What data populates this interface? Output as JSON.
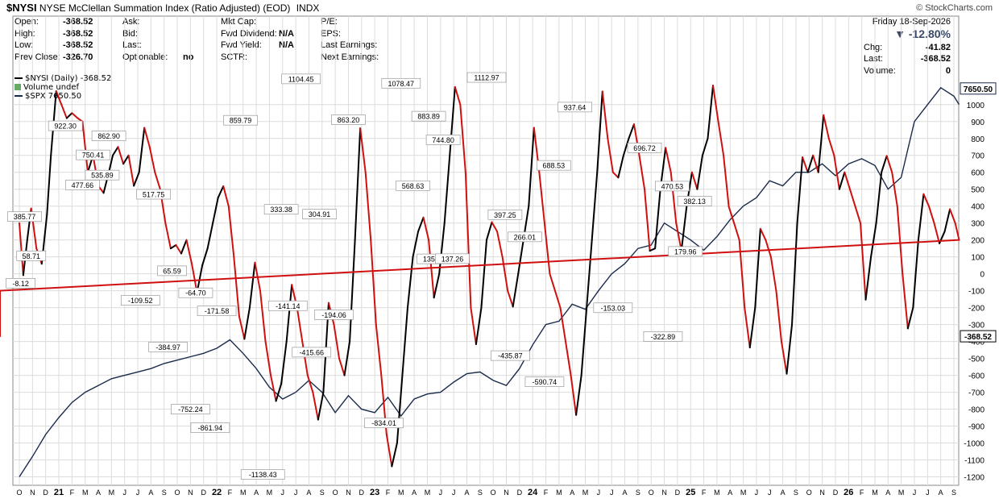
{
  "header": {
    "symbol": "$NYSI",
    "name": "NYSE McClellan Summation Index (Ratio Adjusted) (EOD)",
    "exchange": "INDX",
    "credit": "© StockCharts.com"
  },
  "quote_left": [
    {
      "label": "Open:",
      "value": "-368.52"
    },
    {
      "label": "High:",
      "value": "-368.52"
    },
    {
      "label": "Low:",
      "value": "-368.52"
    },
    {
      "label": "Prev Close:",
      "value": "-326.70"
    }
  ],
  "quote_mid": [
    {
      "label": "Ask:",
      "value": ""
    },
    {
      "label": "Bid:",
      "value": ""
    },
    {
      "label": "Last:",
      "value": ""
    },
    {
      "label": "Optionable:",
      "value": "no"
    }
  ],
  "quote_mid2": [
    {
      "label": "Mkt Cap:",
      "value": ""
    },
    {
      "label": "Fwd Dividend:",
      "value": "N/A"
    },
    {
      "label": "Fwd Yield:",
      "value": "N/A"
    },
    {
      "label": "SCTR:",
      "value": ""
    }
  ],
  "quote_mid3": [
    {
      "label": "P/E:",
      "value": ""
    },
    {
      "label": "EPS:",
      "value": ""
    },
    {
      "label": "Last Earnings:",
      "value": ""
    },
    {
      "label": "Next Earnings:",
      "value": ""
    }
  ],
  "quote_right": {
    "date": "Friday  18-Sep-2026",
    "change_pct": "▼ -12.80%",
    "rows": [
      {
        "label": "Chg:",
        "value": "-41.82"
      },
      {
        "label": "Last:",
        "value": "-368.52"
      },
      {
        "label": "Volume:",
        "value": "0"
      }
    ]
  },
  "legend": {
    "nysi": "$NYSI (Daily) -368.52",
    "volume": "Volume undef",
    "spx": "$SPX 7650.50"
  },
  "colors": {
    "rising": "#000000",
    "falling": "#d01010",
    "spx": "#1a2a4a",
    "grid": "#dcdcdc"
  },
  "chart_data": {
    "type": "line",
    "ylim": [
      -1250,
      1180
    ],
    "yticks": [
      "1000",
      "900",
      "800",
      "700",
      "600",
      "500",
      "400",
      "300",
      "200",
      "100",
      "0",
      "-100",
      "-200",
      "-300",
      "-400",
      "-500",
      "-600",
      "-700",
      "-800",
      "-900",
      "-1000",
      "-1100",
      "-1200"
    ],
    "xlabels": [
      "O",
      "N",
      "D",
      "21",
      "F",
      "M",
      "A",
      "M",
      "J",
      "J",
      "A",
      "S",
      "O",
      "N",
      "D",
      "22",
      "F",
      "M",
      "A",
      "M",
      "J",
      "J",
      "A",
      "S",
      "O",
      "N",
      "D",
      "23",
      "F",
      "M",
      "A",
      "M",
      "J",
      "J",
      "A",
      "S",
      "O",
      "N",
      "D",
      "24",
      "F",
      "M",
      "A",
      "M",
      "J",
      "J",
      "A",
      "S",
      "O",
      "N",
      "D",
      "25",
      "F",
      "M",
      "A",
      "M",
      "J",
      "J",
      "A",
      "S",
      "O",
      "N",
      "D",
      "26",
      "F",
      "M",
      "A",
      "M",
      "J",
      "J",
      "A",
      "S"
    ],
    "year_labels": [
      "21",
      "22",
      "23",
      "24",
      "25",
      "26"
    ],
    "series": [
      {
        "name": "$NYSI",
        "x_month_index": [
          0,
          0.3,
          0.6,
          0.9,
          1.3,
          1.7,
          2.1,
          2.4,
          2.8,
          3.2,
          3.6,
          4.0,
          4.4,
          4.8,
          5.2,
          5.6,
          6.0,
          6.4,
          6.8,
          7.1,
          7.5,
          7.9,
          8.3,
          8.7,
          9.1,
          9.5,
          9.9,
          10.3,
          10.7,
          11.1,
          11.5,
          11.9,
          12.3,
          12.7,
          13.1,
          13.5,
          13.9,
          14.3,
          14.7,
          15.1,
          15.5,
          15.9,
          16.3,
          16.7,
          17.1,
          17.5,
          17.9,
          18.3,
          18.7,
          19.1,
          19.5,
          19.9,
          20.3,
          20.7,
          21.1,
          21.5,
          21.9,
          22.3,
          22.7,
          23.1,
          23.5,
          23.9,
          24.3,
          24.7,
          25.1,
          25.5,
          25.9,
          26.3,
          26.7,
          27.1,
          27.5,
          27.9,
          28.3,
          28.7,
          29.1,
          29.5,
          29.9,
          30.3,
          30.7,
          31.1,
          31.5,
          31.9,
          32.3,
          32.7,
          33.1,
          33.5,
          33.9,
          34.3,
          34.7,
          35.1,
          35.5,
          35.9,
          36.3,
          36.7,
          37.1,
          37.5,
          37.9,
          38.3,
          38.7,
          39.1,
          39.5,
          39.9,
          40.3,
          40.7,
          41.1,
          41.5,
          41.9,
          42.3,
          42.7,
          43.1,
          43.5,
          43.9,
          44.3,
          44.7,
          45.1,
          45.5,
          45.9,
          46.3,
          46.7,
          47.1,
          47.5,
          47.9,
          48.3,
          48.7,
          49.1,
          49.5,
          49.9,
          50.3,
          50.7,
          51.1,
          51.5,
          51.9,
          52.3,
          52.7,
          53.1,
          53.5,
          53.9,
          54.3,
          54.7,
          55.1,
          55.5,
          55.9,
          56.3,
          56.7,
          57.1,
          57.5,
          57.9,
          58.3,
          58.7,
          59.1,
          59.5,
          59.9,
          60.3,
          60.7,
          61.1,
          61.5,
          61.9,
          62.3,
          62.7,
          63.1,
          63.5,
          63.9,
          64.3,
          64.7,
          65.1,
          65.5,
          65.9,
          66.3,
          66.7,
          67.1,
          67.5,
          67.9,
          68.3,
          68.7,
          69.1,
          69.5,
          69.9,
          70.3,
          70.7,
          71.1,
          71.4
        ],
        "values": [
          300,
          -8,
          200,
          386,
          150,
          59,
          350,
          700,
          1080,
          1000,
          920,
          950,
          922,
          900,
          600,
          700,
          520,
          478,
          600,
          700,
          750,
          650,
          700,
          520,
          600,
          863,
          750,
          600,
          500,
          300,
          150,
          170,
          120,
          200,
          60,
          -110,
          50,
          150,
          300,
          450,
          518,
          400,
          100,
          -250,
          -385,
          -200,
          66,
          -100,
          -400,
          -600,
          -752,
          -650,
          -400,
          -65,
          -200,
          -400,
          -600,
          -700,
          -862,
          -700,
          -172,
          -300,
          -500,
          -600,
          -400,
          200,
          860,
          600,
          200,
          -300,
          -600,
          -950,
          -1138,
          -1000,
          -600,
          -200,
          100,
          250,
          333,
          200,
          -141,
          0,
          300,
          700,
          1104,
          1000,
          600,
          -200,
          -416,
          -200,
          200,
          305,
          250,
          100,
          -100,
          -194,
          0,
          200,
          400,
          863,
          600,
          300,
          0,
          -100,
          -200,
          -400,
          -600,
          -834,
          -600,
          -200,
          200,
          600,
          1078,
          800,
          600,
          569,
          700,
          800,
          884,
          700,
          500,
          136,
          150,
          500,
          745,
          600,
          300,
          137,
          400,
          600,
          500,
          700,
          800,
          1113,
          900,
          700,
          397,
          300,
          200,
          -200,
          -436,
          -200,
          266,
          200,
          100,
          -100,
          -400,
          -591,
          -300,
          300,
          689,
          600,
          700,
          600,
          938,
          800,
          700,
          500,
          600,
          500,
          400,
          300,
          -153,
          100,
          300,
          600,
          697,
          600,
          400,
          0,
          -323,
          -200,
          200,
          471,
          400,
          300,
          180,
          250,
          382,
          300,
          200,
          -100,
          -369
        ]
      },
      {
        "name": "$SPX",
        "x_month_index": [
          0,
          1,
          2,
          3,
          4,
          5,
          6,
          7,
          8,
          9,
          10,
          11,
          12,
          13,
          14,
          15,
          16,
          17,
          18,
          19,
          20,
          21,
          22,
          23,
          24,
          25,
          26,
          27,
          28,
          29,
          30,
          31,
          32,
          33,
          34,
          35,
          36,
          37,
          38,
          39,
          40,
          41,
          42,
          43,
          44,
          45,
          46,
          47,
          48,
          49,
          50,
          51,
          52,
          53,
          54,
          55,
          56,
          57,
          58,
          59,
          60,
          61,
          62,
          63,
          64,
          65,
          66,
          67,
          68,
          69,
          70,
          71,
          71.4
        ],
        "values": [
          -1200,
          -1080,
          -950,
          -850,
          -760,
          -700,
          -660,
          -620,
          -600,
          -580,
          -560,
          -530,
          -510,
          -490,
          -470,
          -440,
          -390,
          -470,
          -560,
          -670,
          -740,
          -700,
          -630,
          -700,
          -820,
          -720,
          -800,
          -820,
          -730,
          -840,
          -740,
          -710,
          -700,
          -640,
          -590,
          -580,
          -630,
          -660,
          -560,
          -420,
          -300,
          -280,
          -180,
          -210,
          -100,
          0,
          60,
          150,
          170,
          300,
          250,
          200,
          140,
          220,
          320,
          400,
          450,
          550,
          520,
          600,
          600,
          650,
          580,
          650,
          680,
          640,
          500,
          570,
          900,
          1000,
          1100,
          1050,
          1000
        ]
      }
    ],
    "annotations": [
      {
        "x": 0.1,
        "y": -8.12,
        "text": "-8.12"
      },
      {
        "x": 0.4,
        "y": 385.77,
        "text": "385.77"
      },
      {
        "x": 0.9,
        "y": 58.71,
        "text": "58.71"
      },
      {
        "x": 3.5,
        "y": 922.3,
        "text": "922.30"
      },
      {
        "x": 4.8,
        "y": 477.66,
        "text": "477.66"
      },
      {
        "x": 5.6,
        "y": 750.41,
        "text": "750.41"
      },
      {
        "x": 6.3,
        "y": 535.89,
        "text": "535.89"
      },
      {
        "x": 6.8,
        "y": 862.9,
        "text": "862.90"
      },
      {
        "x": 9.2,
        "y": -109.52,
        "text": "-109.52"
      },
      {
        "x": 10.2,
        "y": 517.75,
        "text": "517.75"
      },
      {
        "x": 11.3,
        "y": -384.97,
        "text": "-384.97"
      },
      {
        "x": 11.6,
        "y": 65.59,
        "text": "65.59"
      },
      {
        "x": 13.0,
        "y": -752.24,
        "text": "-752.24"
      },
      {
        "x": 13.4,
        "y": -64.7,
        "text": "-64.70"
      },
      {
        "x": 14.5,
        "y": -861.94,
        "text": "-861.94"
      },
      {
        "x": 15.0,
        "y": -171.58,
        "text": "-171.58"
      },
      {
        "x": 16.8,
        "y": 859.79,
        "text": "859.79"
      },
      {
        "x": 18.5,
        "y": -1138.43,
        "text": "-1138.43"
      },
      {
        "x": 19.9,
        "y": 333.38,
        "text": "333.38"
      },
      {
        "x": 20.4,
        "y": -141.14,
        "text": "-141.14"
      },
      {
        "x": 21.4,
        "y": 1104.45,
        "text": "1104.45"
      },
      {
        "x": 22.2,
        "y": -415.66,
        "text": "-415.66"
      },
      {
        "x": 22.8,
        "y": 304.91,
        "text": "304.91"
      },
      {
        "x": 23.9,
        "y": -194.06,
        "text": "-194.06"
      },
      {
        "x": 25.0,
        "y": 863.2,
        "text": "863.20"
      },
      {
        "x": 27.7,
        "y": -834.01,
        "text": "-834.01"
      },
      {
        "x": 29.0,
        "y": 1078.47,
        "text": "1078.47"
      },
      {
        "x": 29.9,
        "y": 568.63,
        "text": "568.63"
      },
      {
        "x": 31.1,
        "y": 883.89,
        "text": "883.89"
      },
      {
        "x": 31.5,
        "y": 135.98,
        "text": "135.98"
      },
      {
        "x": 32.2,
        "y": 744.8,
        "text": "744.80"
      },
      {
        "x": 32.9,
        "y": 137.26,
        "text": "137.26"
      },
      {
        "x": 35.5,
        "y": 1112.97,
        "text": "1112.97"
      },
      {
        "x": 36.9,
        "y": 397.25,
        "text": "397.25"
      },
      {
        "x": 37.3,
        "y": -435.87,
        "text": "-435.87"
      },
      {
        "x": 38.4,
        "y": 266.01,
        "text": "266.01"
      },
      {
        "x": 39.9,
        "y": -590.74,
        "text": "-590.74"
      },
      {
        "x": 40.6,
        "y": 688.53,
        "text": "688.53"
      },
      {
        "x": 42.2,
        "y": 937.64,
        "text": "937.64"
      },
      {
        "x": 45.1,
        "y": -153.03,
        "text": "-153.03"
      },
      {
        "x": 47.5,
        "y": 696.72,
        "text": "696.72"
      },
      {
        "x": 48.9,
        "y": -322.89,
        "text": "-322.89"
      },
      {
        "x": 49.6,
        "y": 470.53,
        "text": "470.53"
      },
      {
        "x": 50.6,
        "y": 179.96,
        "text": "179.96"
      },
      {
        "x": 51.3,
        "y": 382.13,
        "text": "382.13"
      }
    ],
    "last_labels": {
      "nysi": "-368.52",
      "spx": "7650.50"
    }
  }
}
